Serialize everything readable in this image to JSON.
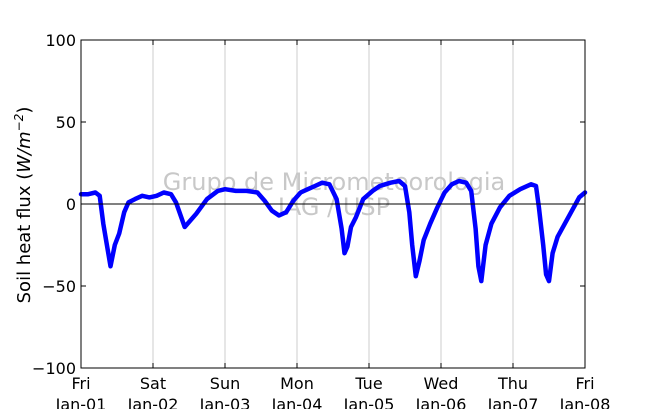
{
  "watermark": {
    "line1": "Grupo de Micrometeorologia",
    "line2": "IAG / USP"
  },
  "chart_data": {
    "type": "line",
    "ylabel_prefix": "Soil heat flux (",
    "ylabel_unit": "W/m",
    "ylabel_exp": "−2",
    "ylabel_suffix": ")",
    "ylim": [
      -100,
      100
    ],
    "yticks": [
      100,
      50,
      0,
      -50,
      -100
    ],
    "ytick_labels": [
      "100",
      "50",
      "0",
      "−50",
      "−100"
    ],
    "xlim": [
      0,
      7
    ],
    "xticks": [
      {
        "x": 0,
        "day": "Fri",
        "date": "Jan-01"
      },
      {
        "x": 1,
        "day": "Sat",
        "date": "Jan-02"
      },
      {
        "x": 2,
        "day": "Sun",
        "date": "Jan-03"
      },
      {
        "x": 3,
        "day": "Mon",
        "date": "Jan-04"
      },
      {
        "x": 4,
        "day": "Tue",
        "date": "Jan-05"
      },
      {
        "x": 5,
        "day": "Wed",
        "date": "Jan-06"
      },
      {
        "x": 6,
        "day": "Thu",
        "date": "Jan-07"
      },
      {
        "x": 7,
        "day": "Fri",
        "date": "Jan-08"
      }
    ],
    "grid": "vertical",
    "zero_line": true,
    "series": [
      {
        "color": "#0000ff",
        "points": [
          [
            0.0,
            6
          ],
          [
            0.1,
            6
          ],
          [
            0.2,
            7
          ],
          [
            0.26,
            5
          ],
          [
            0.31,
            -12
          ],
          [
            0.36,
            -25
          ],
          [
            0.41,
            -38
          ],
          [
            0.47,
            -25
          ],
          [
            0.53,
            -18
          ],
          [
            0.6,
            -5
          ],
          [
            0.66,
            1
          ],
          [
            0.75,
            3
          ],
          [
            0.85,
            5
          ],
          [
            0.95,
            4
          ],
          [
            1.05,
            5
          ],
          [
            1.15,
            7
          ],
          [
            1.25,
            6
          ],
          [
            1.32,
            1
          ],
          [
            1.44,
            -14
          ],
          [
            1.6,
            -6
          ],
          [
            1.75,
            3
          ],
          [
            1.9,
            8
          ],
          [
            2.0,
            9
          ],
          [
            2.15,
            8
          ],
          [
            2.3,
            8
          ],
          [
            2.45,
            7
          ],
          [
            2.55,
            2
          ],
          [
            2.65,
            -4
          ],
          [
            2.75,
            -7
          ],
          [
            2.85,
            -5
          ],
          [
            2.95,
            2
          ],
          [
            3.05,
            7
          ],
          [
            3.15,
            9
          ],
          [
            3.25,
            11
          ],
          [
            3.35,
            13
          ],
          [
            3.45,
            12
          ],
          [
            3.55,
            3
          ],
          [
            3.62,
            -15
          ],
          [
            3.66,
            -30
          ],
          [
            3.7,
            -26
          ],
          [
            3.75,
            -14
          ],
          [
            3.82,
            -8
          ],
          [
            3.92,
            3
          ],
          [
            4.05,
            8
          ],
          [
            4.15,
            11
          ],
          [
            4.3,
            13
          ],
          [
            4.42,
            14
          ],
          [
            4.5,
            11
          ],
          [
            4.56,
            -5
          ],
          [
            4.6,
            -25
          ],
          [
            4.65,
            -44
          ],
          [
            4.7,
            -35
          ],
          [
            4.76,
            -22
          ],
          [
            4.85,
            -12
          ],
          [
            4.95,
            -2
          ],
          [
            5.05,
            7
          ],
          [
            5.15,
            12
          ],
          [
            5.25,
            14
          ],
          [
            5.35,
            13
          ],
          [
            5.42,
            8
          ],
          [
            5.48,
            -15
          ],
          [
            5.52,
            -38
          ],
          [
            5.56,
            -47
          ],
          [
            5.62,
            -25
          ],
          [
            5.7,
            -12
          ],
          [
            5.82,
            -2
          ],
          [
            5.95,
            5
          ],
          [
            6.1,
            9
          ],
          [
            6.25,
            12
          ],
          [
            6.32,
            11
          ],
          [
            6.36,
            -2
          ],
          [
            6.42,
            -25
          ],
          [
            6.46,
            -43
          ],
          [
            6.5,
            -47
          ],
          [
            6.55,
            -30
          ],
          [
            6.62,
            -20
          ],
          [
            6.72,
            -12
          ],
          [
            6.82,
            -4
          ],
          [
            6.92,
            4
          ],
          [
            7.0,
            7
          ]
        ]
      }
    ]
  }
}
